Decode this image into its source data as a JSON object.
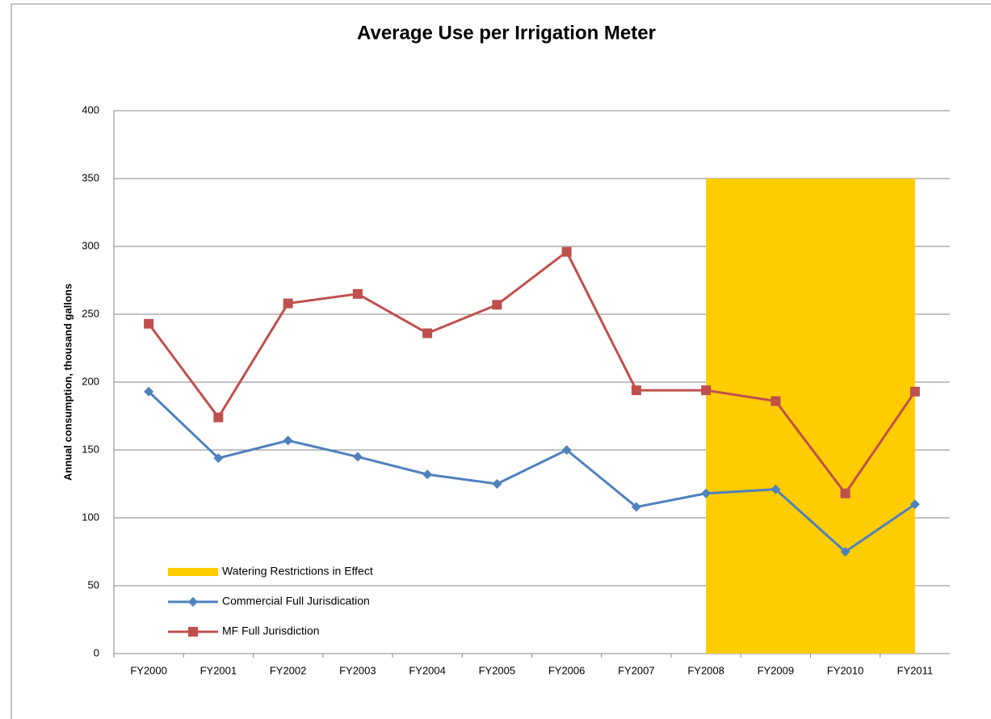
{
  "chart_data": {
    "type": "line",
    "title": "Average Use per Irrigation Meter",
    "y_label": "Annual consumption, thousand gallons",
    "categories": [
      "FY2000",
      "FY2001",
      "FY2002",
      "FY2003",
      "FY2004",
      "FY2005",
      "FY2006",
      "FY2007",
      "FY2008",
      "FY2009",
      "FY2010",
      "FY2011"
    ],
    "series": [
      {
        "name": "Watering Restrictions in Effect",
        "type": "area",
        "color": "#ffcc00",
        "values": [
          null,
          null,
          null,
          null,
          null,
          null,
          null,
          null,
          350,
          350,
          350,
          350
        ]
      },
      {
        "name": "Commercial Full Jurisdication",
        "type": "line",
        "marker": "diamond",
        "color": "#4f81bd",
        "values": [
          193,
          144,
          157,
          145,
          132,
          125,
          150,
          108,
          118,
          121,
          75,
          110
        ]
      },
      {
        "name": "MF Full Jurisdiction",
        "type": "line",
        "marker": "square",
        "color": "#c0504d",
        "values": [
          243,
          174,
          258,
          265,
          236,
          257,
          296,
          194,
          194,
          186,
          118,
          193
        ]
      }
    ],
    "ylim": [
      0,
      400
    ],
    "yticks": [
      0,
      50,
      100,
      150,
      200,
      250,
      300,
      350,
      400
    ],
    "grid": true,
    "legend": "lower left"
  }
}
